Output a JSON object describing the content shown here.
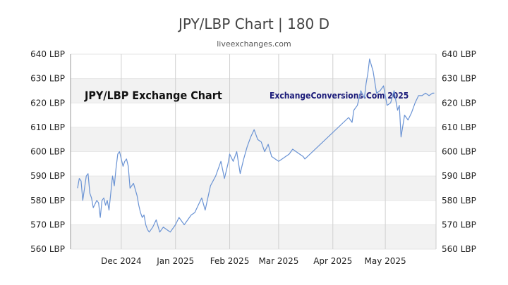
{
  "header": {
    "title": "JPY/LBP Chart | 180 D",
    "subtitle": "liveexchanges.com"
  },
  "colors": {
    "line": "#6a93d4",
    "band": "#f2f2f2",
    "grid": "#d0d0d0",
    "watermark": "#1c1c7a",
    "text": "#222222"
  },
  "chart_data": {
    "type": "line",
    "title": "JPY/LBP Exchange Chart",
    "watermark": "ExchangeConversions.Com 2025",
    "ylim": [
      560,
      640
    ],
    "yticks": [
      560,
      570,
      580,
      590,
      600,
      610,
      620,
      630,
      640
    ],
    "ytick_labels": [
      "560 LBP",
      "570 LBP",
      "580 LBP",
      "590 LBP",
      "600 LBP",
      "610 LBP",
      "620 LBP",
      "630 LBP",
      "640 LBP"
    ],
    "xlim": [
      "2024-11-02",
      "2025-05-30"
    ],
    "xticks": [
      "2024-12-01",
      "2025-01-01",
      "2025-02-01",
      "2025-03-01",
      "2025-04-01",
      "2025-05-01"
    ],
    "xtick_labels": [
      "Dec 2024",
      "Jan 2025",
      "Feb 2025",
      "Mar 2025",
      "Apr 2025",
      "May 2025"
    ],
    "grid": true,
    "series": [
      {
        "x": [
          "2024-11-06",
          "2024-11-07",
          "2024-11-08",
          "2024-11-09",
          "2024-11-11",
          "2024-11-12",
          "2024-11-13",
          "2024-11-14",
          "2024-11-15",
          "2024-11-17",
          "2024-11-18",
          "2024-11-19",
          "2024-11-20",
          "2024-11-21",
          "2024-11-22",
          "2024-11-23",
          "2024-11-24",
          "2024-11-26",
          "2024-11-27",
          "2024-11-28",
          "2024-11-29",
          "2024-11-30",
          "2024-12-01",
          "2024-12-02",
          "2024-12-03",
          "2024-12-04",
          "2024-12-05",
          "2024-12-06",
          "2024-12-08",
          "2024-12-10",
          "2024-12-11",
          "2024-12-12",
          "2024-12-13",
          "2024-12-14",
          "2024-12-15",
          "2024-12-16",
          "2024-12-17",
          "2024-12-19",
          "2024-12-21",
          "2024-12-23",
          "2024-12-25",
          "2024-12-27",
          "2024-12-29",
          "2025-01-01",
          "2025-01-03",
          "2025-01-06",
          "2025-01-08",
          "2025-01-10",
          "2025-01-12",
          "2025-01-14",
          "2025-01-16",
          "2025-01-18",
          "2025-01-21",
          "2025-01-24",
          "2025-01-27",
          "2025-01-29",
          "2025-01-31",
          "2025-02-01",
          "2025-02-03",
          "2025-02-05",
          "2025-02-07",
          "2025-02-09",
          "2025-02-11",
          "2025-02-13",
          "2025-02-15",
          "2025-02-17",
          "2025-02-19",
          "2025-02-21",
          "2025-02-23",
          "2025-02-25",
          "2025-02-27",
          "2025-03-01",
          "2025-03-03",
          "2025-03-05",
          "2025-03-07",
          "2025-03-09",
          "2025-03-11",
          "2025-03-13",
          "2025-03-15",
          "2025-03-16",
          "2025-04-10",
          "2025-04-12",
          "2025-04-13",
          "2025-04-15",
          "2025-04-17",
          "2025-04-19",
          "2025-04-20",
          "2025-04-21",
          "2025-04-22",
          "2025-04-24",
          "2025-04-26",
          "2025-04-28",
          "2025-04-30",
          "2025-05-02",
          "2025-05-04",
          "2025-05-06",
          "2025-05-08",
          "2025-05-09",
          "2025-05-10",
          "2025-05-12",
          "2025-05-14",
          "2025-05-16",
          "2025-05-18",
          "2025-05-20",
          "2025-05-22",
          "2025-05-24",
          "2025-05-26",
          "2025-05-28",
          "2025-05-29"
        ],
        "values": [
          585,
          589,
          588,
          580,
          590,
          591,
          583,
          581,
          577,
          580,
          579,
          573,
          580,
          581,
          578,
          580,
          576,
          590,
          586,
          593,
          599,
          600,
          597,
          594,
          596,
          597,
          594,
          585,
          587,
          582,
          578,
          575,
          573,
          574,
          570,
          568,
          567,
          569,
          572,
          567,
          569,
          568,
          567,
          570,
          573,
          570,
          572,
          574,
          575,
          578,
          581,
          576,
          586,
          590,
          596,
          589,
          595,
          599,
          596,
          600,
          591,
          597,
          602,
          606,
          609,
          605,
          604,
          600,
          603,
          598,
          597,
          596,
          597,
          598,
          599,
          601,
          600,
          599,
          598,
          597,
          614,
          612,
          617,
          619,
          625,
          622,
          628,
          632,
          638,
          633,
          624,
          625,
          627,
          619,
          620,
          625,
          617,
          619,
          606,
          615,
          613,
          616,
          620,
          623,
          623,
          624,
          623,
          624,
          624
        ]
      }
    ]
  }
}
